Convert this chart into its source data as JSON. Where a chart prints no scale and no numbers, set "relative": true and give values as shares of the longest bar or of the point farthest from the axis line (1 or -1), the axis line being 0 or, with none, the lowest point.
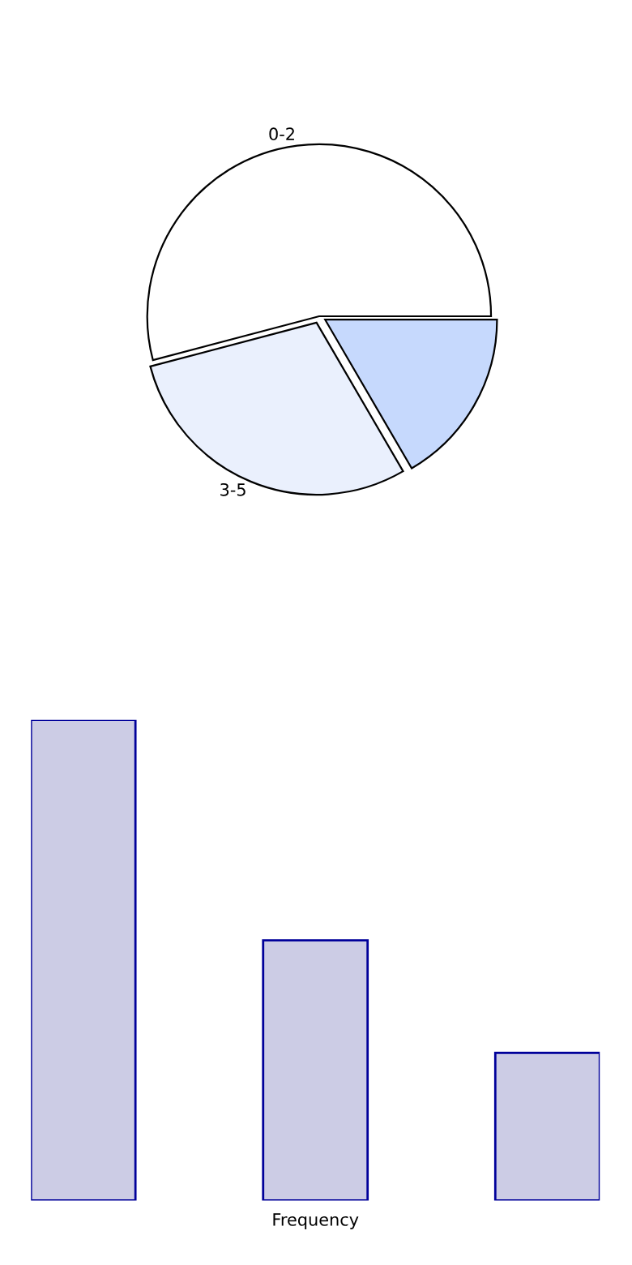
{
  "chart_data": [
    {
      "type": "pie",
      "categories": [
        "0-2",
        "3-5",
        null
      ],
      "values": [
        54.1,
        29.3,
        16.6
      ],
      "colors": [
        "#ffffff",
        "#eaf0fd",
        "#c6d9fd"
      ]
    },
    {
      "type": "bar",
      "relative": true,
      "xlabel": "Frequency",
      "categories": [
        null,
        null,
        null
      ],
      "values": [
        1,
        0.541,
        0.307
      ],
      "color": "#ccccE5"
    }
  ]
}
